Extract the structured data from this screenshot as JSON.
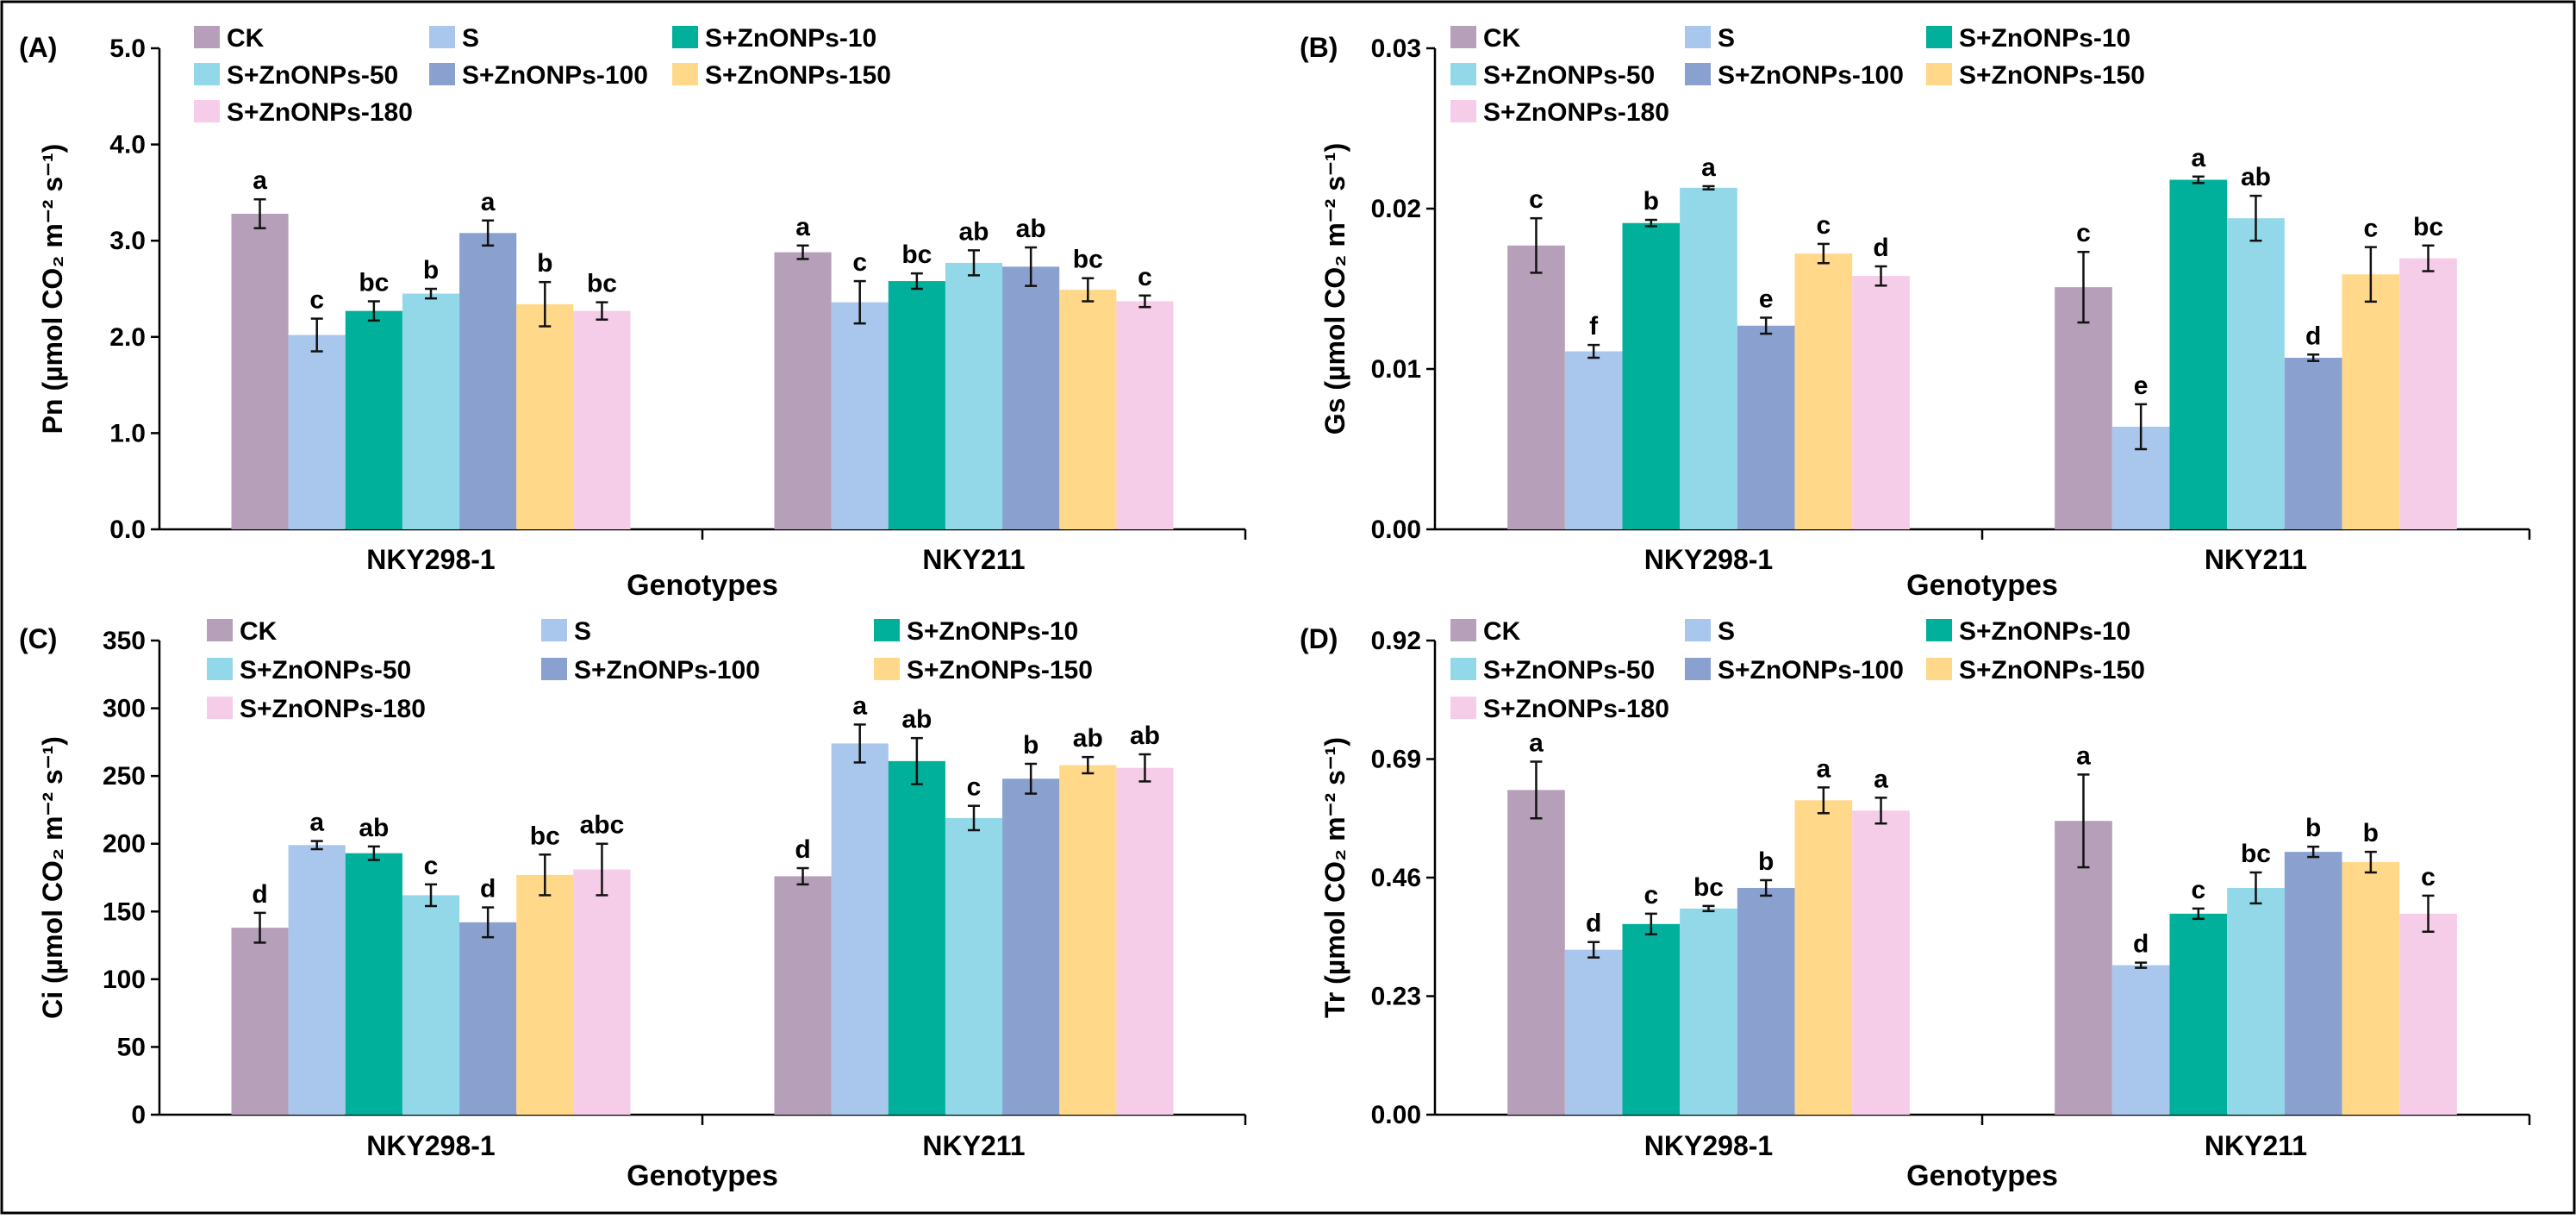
{
  "figure": {
    "background": "#ffffff",
    "frame_color": "#000000"
  },
  "chart_data": [
    {
      "type": "bar",
      "panel_label": "(A)",
      "title": "",
      "xlabel": "Genotypes",
      "ylabel": "Pn (µmol CO₂ m⁻² s⁻¹)",
      "ylim": [
        0,
        5.0
      ],
      "yticks": [
        "0.0",
        "1.0",
        "2.0",
        "3.0",
        "4.0",
        "5.0"
      ],
      "categories": [
        "NKY298-1",
        "NKY211"
      ],
      "series": [
        {
          "name": "CK",
          "color": "#b69fb8",
          "values": [
            3.28,
            2.88
          ],
          "errors": [
            0.15,
            0.07
          ],
          "letters": [
            "a",
            "a"
          ]
        },
        {
          "name": "S",
          "color": "#a9c6ec",
          "values": [
            2.02,
            2.36
          ],
          "errors": [
            0.17,
            0.22
          ],
          "letters": [
            "c",
            "c"
          ]
        },
        {
          "name": "S+ZnONPs-10",
          "color": "#00b09a",
          "values": [
            2.27,
            2.58
          ],
          "errors": [
            0.1,
            0.08
          ],
          "letters": [
            "bc",
            "bc"
          ]
        },
        {
          "name": "S+ZnONPs-50",
          "color": "#93d8e8",
          "values": [
            2.45,
            2.77
          ],
          "errors": [
            0.05,
            0.13
          ],
          "letters": [
            "b",
            "ab"
          ]
        },
        {
          "name": "S+ZnONPs-100",
          "color": "#8aa0cf",
          "values": [
            3.08,
            2.73
          ],
          "errors": [
            0.13,
            0.2
          ],
          "letters": [
            "a",
            "ab"
          ]
        },
        {
          "name": "S+ZnONPs-150",
          "color": "#ffd88a",
          "values": [
            2.34,
            2.49
          ],
          "errors": [
            0.23,
            0.12
          ],
          "letters": [
            "b",
            "bc"
          ]
        },
        {
          "name": "S+ZnONPs-180",
          "color": "#f6cde8",
          "values": [
            2.27,
            2.37
          ],
          "errors": [
            0.09,
            0.06
          ],
          "letters": [
            "bc",
            "c"
          ]
        }
      ]
    },
    {
      "type": "bar",
      "panel_label": "(B)",
      "title": "",
      "xlabel": "Genotypes",
      "ylabel": "Gs (µmol CO₂ m⁻² s⁻¹)",
      "ylim": [
        0,
        0.03
      ],
      "yticks": [
        "0.00",
        "0.01",
        "0.02",
        "0.03"
      ],
      "categories": [
        "NKY298-1",
        "NKY211"
      ],
      "series": [
        {
          "name": "CK",
          "color": "#b69fb8",
          "values": [
            0.0177,
            0.0151
          ],
          "errors": [
            0.0017,
            0.0022
          ],
          "letters": [
            "c",
            "c"
          ]
        },
        {
          "name": "S",
          "color": "#a9c6ec",
          "values": [
            0.0111,
            0.0064
          ],
          "errors": [
            0.0004,
            0.0014
          ],
          "letters": [
            "f",
            "e"
          ]
        },
        {
          "name": "S+ZnONPs-10",
          "color": "#00b09a",
          "values": [
            0.0191,
            0.0218
          ],
          "errors": [
            0.0002,
            0.0002
          ],
          "letters": [
            "b",
            "a"
          ]
        },
        {
          "name": "S+ZnONPs-50",
          "color": "#93d8e8",
          "values": [
            0.0213,
            0.0194
          ],
          "errors": [
            0.0001,
            0.0014
          ],
          "letters": [
            "a",
            "ab"
          ]
        },
        {
          "name": "S+ZnONPs-100",
          "color": "#8aa0cf",
          "values": [
            0.0127,
            0.0107
          ],
          "errors": [
            0.0005,
            0.0002
          ],
          "letters": [
            "e",
            "d"
          ]
        },
        {
          "name": "S+ZnONPs-150",
          "color": "#ffd88a",
          "values": [
            0.0172,
            0.0159
          ],
          "errors": [
            0.0006,
            0.0017
          ],
          "letters": [
            "c",
            "c"
          ]
        },
        {
          "name": "S+ZnONPs-180",
          "color": "#f6cde8",
          "values": [
            0.0158,
            0.0169
          ],
          "errors": [
            0.0006,
            0.0008
          ],
          "letters": [
            "d",
            "bc"
          ]
        }
      ]
    },
    {
      "type": "bar",
      "panel_label": "(C)",
      "title": "",
      "xlabel": "Genotypes",
      "ylabel": "Ci (µmol CO₂ m⁻² s⁻¹)",
      "ylim": [
        0,
        350
      ],
      "yticks": [
        "0",
        "50",
        "100",
        "150",
        "200",
        "250",
        "300",
        "350"
      ],
      "categories": [
        "NKY298-1",
        "NKY211"
      ],
      "series": [
        {
          "name": "CK",
          "color": "#b69fb8",
          "values": [
            138,
            176
          ],
          "errors": [
            11,
            6
          ],
          "letters": [
            "d",
            "d"
          ]
        },
        {
          "name": "S",
          "color": "#a9c6ec",
          "values": [
            199,
            274
          ],
          "errors": [
            3,
            14
          ],
          "letters": [
            "a",
            "a"
          ]
        },
        {
          "name": "S+ZnONPs-10",
          "color": "#00b09a",
          "values": [
            193,
            261
          ],
          "errors": [
            5,
            17
          ],
          "letters": [
            "ab",
            "ab"
          ]
        },
        {
          "name": "S+ZnONPs-50",
          "color": "#93d8e8",
          "values": [
            162,
            219
          ],
          "errors": [
            8,
            9
          ],
          "letters": [
            "c",
            "c"
          ]
        },
        {
          "name": "S+ZnONPs-100",
          "color": "#8aa0cf",
          "values": [
            142,
            248
          ],
          "errors": [
            11,
            11
          ],
          "letters": [
            "d",
            "b"
          ]
        },
        {
          "name": "S+ZnONPs-150",
          "color": "#ffd88a",
          "values": [
            177,
            258
          ],
          "errors": [
            15,
            6
          ],
          "letters": [
            "bc",
            "ab"
          ]
        },
        {
          "name": "S+ZnONPs-180",
          "color": "#f6cde8",
          "values": [
            181,
            256
          ],
          "errors": [
            19,
            10
          ],
          "letters": [
            "abc",
            "ab"
          ]
        }
      ]
    },
    {
      "type": "bar",
      "panel_label": "(D)",
      "title": "",
      "xlabel": "Genotypes",
      "ylabel": "Tr (µmol CO₂ m⁻² s⁻¹)",
      "ylim": [
        0,
        0.92
      ],
      "yticks": [
        "0.00",
        "0.23",
        "0.46",
        "0.69",
        "0.92"
      ],
      "categories": [
        "NKY298-1",
        "NKY211"
      ],
      "series": [
        {
          "name": "CK",
          "color": "#b69fb8",
          "values": [
            0.63,
            0.57
          ],
          "errors": [
            0.055,
            0.09
          ],
          "letters": [
            "a",
            "a"
          ]
        },
        {
          "name": "S",
          "color": "#a9c6ec",
          "values": [
            0.32,
            0.29
          ],
          "errors": [
            0.015,
            0.005
          ],
          "letters": [
            "d",
            "d"
          ]
        },
        {
          "name": "S+ZnONPs-10",
          "color": "#00b09a",
          "values": [
            0.37,
            0.39
          ],
          "errors": [
            0.02,
            0.01
          ],
          "letters": [
            "c",
            "c"
          ]
        },
        {
          "name": "S+ZnONPs-50",
          "color": "#93d8e8",
          "values": [
            0.4,
            0.44
          ],
          "errors": [
            0.005,
            0.03
          ],
          "letters": [
            "bc",
            "bc"
          ]
        },
        {
          "name": "S+ZnONPs-100",
          "color": "#8aa0cf",
          "values": [
            0.44,
            0.51
          ],
          "errors": [
            0.015,
            0.01
          ],
          "letters": [
            "b",
            "b"
          ]
        },
        {
          "name": "S+ZnONPs-150",
          "color": "#ffd88a",
          "values": [
            0.61,
            0.49
          ],
          "errors": [
            0.025,
            0.02
          ],
          "letters": [
            "a",
            "b"
          ]
        },
        {
          "name": "S+ZnONPs-180",
          "color": "#f6cde8",
          "values": [
            0.59,
            0.39
          ],
          "errors": [
            0.025,
            0.035
          ],
          "letters": [
            "a",
            "c"
          ]
        }
      ]
    }
  ]
}
